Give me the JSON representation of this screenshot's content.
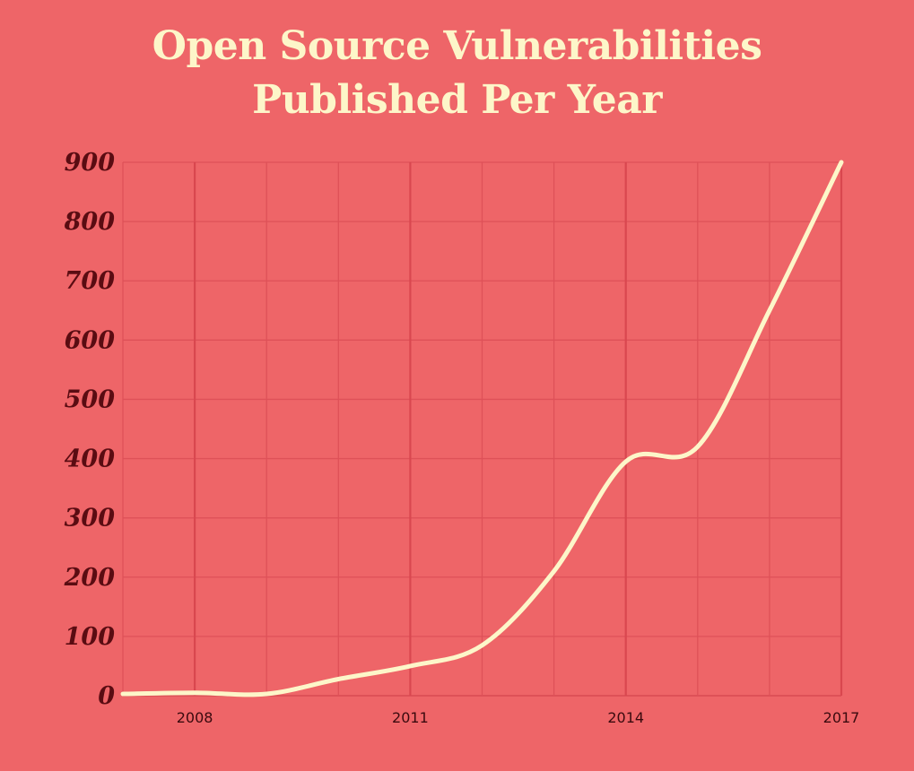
{
  "chart_data": {
    "type": "line",
    "title_lines": [
      "Open Source Vulnerabilities",
      "Published Per Year"
    ],
    "x": [
      2007,
      2008,
      2009,
      2010,
      2011,
      2012,
      2013,
      2014,
      2015,
      2016,
      2017
    ],
    "values": [
      3,
      5,
      3,
      28,
      50,
      85,
      210,
      395,
      420,
      650,
      900
    ],
    "xticks": [
      2008,
      2011,
      2014,
      2017
    ],
    "xlim": [
      2007,
      2017
    ],
    "yticks": [
      0,
      100,
      200,
      300,
      400,
      500,
      600,
      700,
      800,
      900
    ],
    "ylim": [
      0,
      900
    ],
    "grid": true,
    "colors": {
      "background": "#ee6568",
      "line": "#fdf6c9",
      "grid": "#de5158",
      "grid_major": "#d9474f",
      "title": "#fdf6c9",
      "ytick": "#5a0c12",
      "xtick": "#3a0a0e"
    }
  }
}
